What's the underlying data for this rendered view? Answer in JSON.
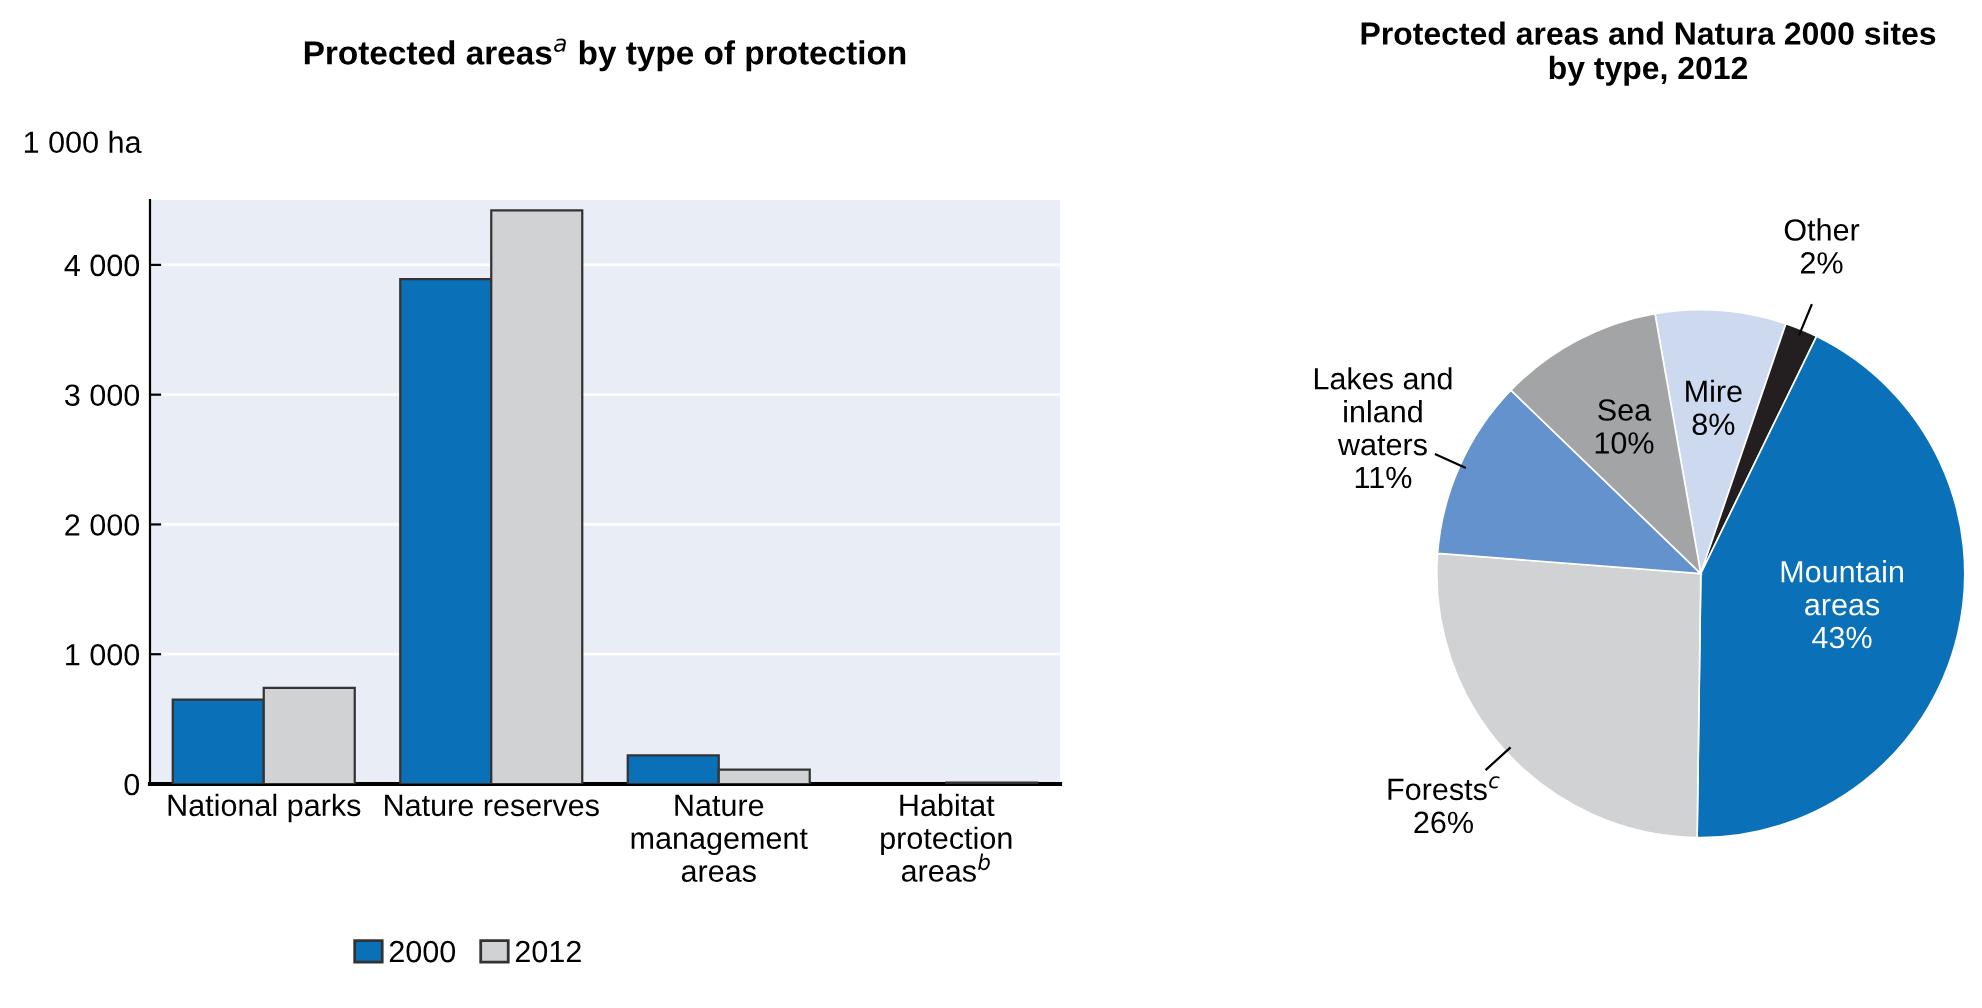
{
  "chart_data": [
    {
      "type": "bar",
      "title": "Protected areas$^{a}$ by type of protection",
      "ylabel": "1 000 ha",
      "categories": [
        "National parks",
        "Nature reserves",
        "Nature\nmanagement\nareas",
        "Habitat\nprotection\nareas$^{b}$"
      ],
      "series": [
        {
          "name": "2000",
          "color": "#0a70b8",
          "values": [
            650,
            3890,
            220,
            null
          ]
        },
        {
          "name": "2012",
          "color": "#d0d2d4",
          "values": [
            740,
            4420,
            110,
            10
          ]
        }
      ],
      "ylim": [
        0,
        4500
      ],
      "yticks": [
        {
          "value": 0,
          "label": "0"
        },
        {
          "value": 1000,
          "label": "1 000"
        },
        {
          "value": 2000,
          "label": "2 000"
        },
        {
          "value": 3000,
          "label": "3 000"
        },
        {
          "value": 4000,
          "label": "4 000"
        }
      ],
      "grid": "y",
      "legend": "bottom"
    },
    {
      "type": "pie",
      "title": "Protected areas and Natura 2000 sites\nby type, 2012",
      "categories": [
        "Mire",
        "Other",
        "Mountain\nareas",
        "Forests$^{c}$",
        "Lakes and\ninland\nwaters",
        "Sea"
      ],
      "values": [
        8,
        2,
        43,
        26,
        11,
        10
      ],
      "colors": [
        "#ccd9ef",
        "#231f20",
        "#0a70b8",
        "#d0d2d4",
        "#6492cc",
        "#a2a4a6"
      ],
      "value_labels": [
        "8%",
        "2%",
        "43%",
        "26%",
        "11%",
        "10%"
      ]
    }
  ]
}
